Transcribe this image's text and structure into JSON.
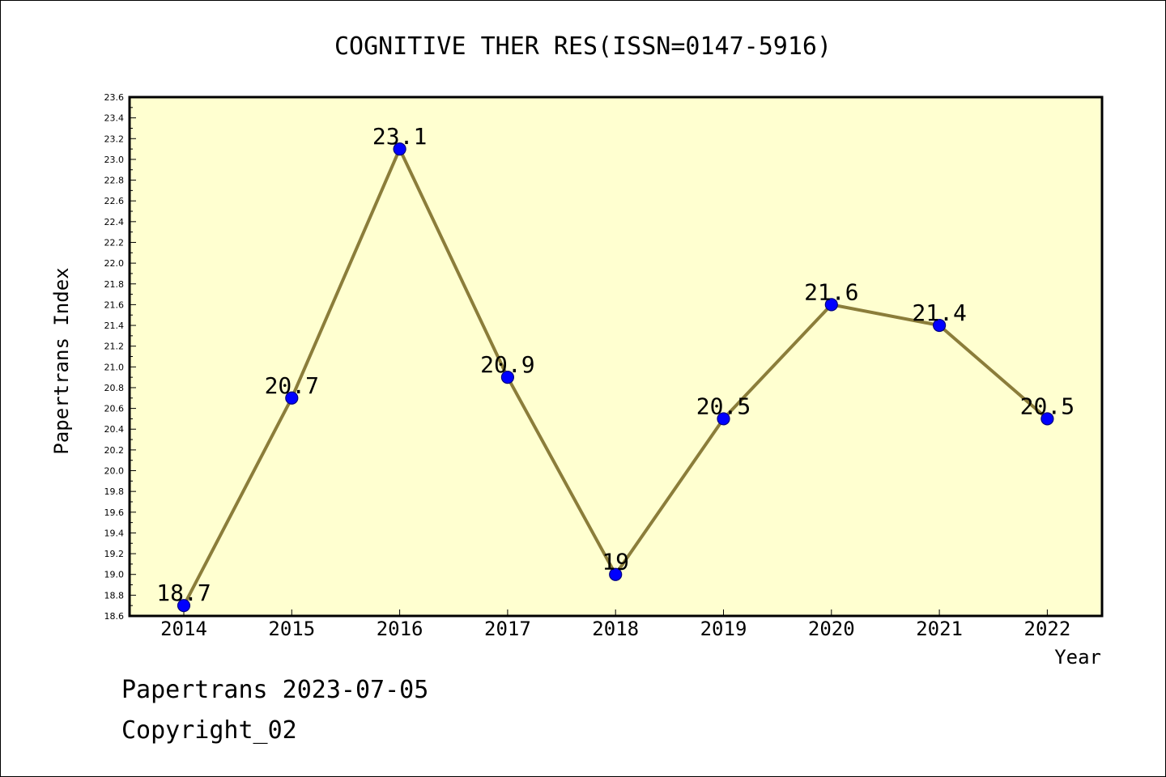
{
  "chart_data": {
    "type": "line",
    "title": "COGNITIVE THER RES(ISSN=0147-5916)",
    "xlabel": "Year",
    "ylabel": "Papertrans Index",
    "categories": [
      "2014",
      "2015",
      "2016",
      "2017",
      "2018",
      "2019",
      "2020",
      "2021",
      "2022"
    ],
    "series": [
      {
        "values": [
          18.7,
          20.7,
          23.1,
          20.9,
          19,
          20.5,
          21.6,
          21.4,
          20.5
        ]
      }
    ],
    "data_labels": [
      "18.7",
      "20.7",
      "23.1",
      "20.9",
      "19",
      "20.5",
      "21.6",
      "21.4",
      "20.5"
    ],
    "ylim": [
      18.6,
      23.6
    ],
    "y_major_step": 0.2,
    "yticks": [
      "18.6",
      "18.8",
      "19.0",
      "19.2",
      "19.4",
      "19.6",
      "19.8",
      "20.0",
      "20.2",
      "20.4",
      "20.6",
      "20.8",
      "21.0",
      "21.2",
      "21.4",
      "21.6",
      "21.8",
      "22.0",
      "22.2",
      "22.4",
      "22.6",
      "22.8",
      "23.0",
      "23.2",
      "23.4",
      "23.6"
    ],
    "grid": false,
    "colors": {
      "plot_background": "#ffffd0",
      "line": "#8b7d3a",
      "marker_fill": "#0000ff",
      "marker_edge": "#000080"
    }
  },
  "footer": {
    "line1": "Papertrans 2023-07-05",
    "line2": "Copyright_02"
  }
}
